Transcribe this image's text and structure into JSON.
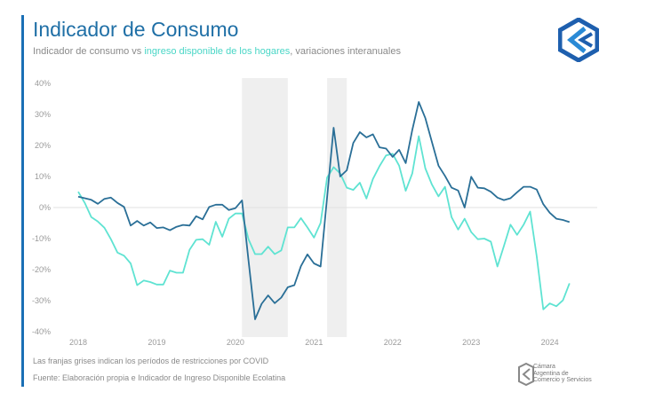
{
  "header": {
    "title": "Indicador de Consumo",
    "subtitle_part1": "Indicador de consumo vs ",
    "subtitle_highlight": "ingreso disponible de los hogares",
    "subtitle_part2": ", variaciones interanuales"
  },
  "logo": {
    "icon": "cac-logo-icon",
    "text": "Cámara Argentina de Comercio y Servicios",
    "lines": [
      "Cámara",
      "Argentina de",
      "Comercio y Servicios"
    ]
  },
  "footer": {
    "note": "Las franjas grises indican los períodos de restricciones por COVID",
    "source": "Fuente: Elaboración propia e Indicador de Ingreso Disponible Ecolatina"
  },
  "colors": {
    "accent": "#1a6fb5",
    "consumo": "#2a6f97",
    "ingreso": "#5fe3d2",
    "band": "#efefef"
  },
  "chart_data": {
    "type": "line",
    "title": "Indicador de Consumo",
    "start_month": "2018-01",
    "frequency": "monthly",
    "x_ticks": [
      "2018",
      "2019",
      "2020",
      "2021",
      "2022",
      "2023",
      "2024"
    ],
    "y_ticks": [
      "40%",
      "30%",
      "20%",
      "10%",
      "0%",
      "-10%",
      "-20%",
      "-30%",
      "-40%"
    ],
    "ylim": [
      -40,
      40
    ],
    "grid": false,
    "zero_line": true,
    "shaded_periods": [
      [
        "2020-02",
        "2020-09"
      ],
      [
        "2021-03",
        "2021-06"
      ]
    ],
    "series": [
      {
        "name": "Indicador de consumo",
        "values": [
          3.5,
          3,
          2.5,
          1.2,
          2.8,
          3.2,
          1.5,
          0.2,
          -5.8,
          -4.3,
          -5.8,
          -4.8,
          -6.6,
          -6.4,
          -7.3,
          -6.2,
          -5.6,
          -5.8,
          -2.8,
          -3.8,
          0.2,
          0.9,
          0.9,
          -0.8,
          -0.2,
          2.3,
          -17,
          -36,
          -31,
          -28.3,
          -30.8,
          -29,
          -25.7,
          -25,
          -18.9,
          -15.1,
          -18,
          -19,
          3.4,
          25.7,
          10,
          12,
          20.8,
          24.3,
          22.6,
          23.6,
          19.4,
          19,
          16.3,
          18.6,
          14.3,
          25,
          34,
          28.8,
          21.1,
          13.5,
          10.2,
          6.4,
          5.5,
          0,
          9.9,
          6.4,
          6.2,
          5.1,
          3.2,
          2.4,
          3,
          4.9,
          6.7,
          6.7,
          5.8,
          1.1,
          -1.7,
          -3.6,
          -4,
          -4.7
        ]
      },
      {
        "name": "ingreso disponible de los hogares",
        "values": [
          5.1,
          1.5,
          -3.1,
          -4.5,
          -6.5,
          -10.2,
          -14.5,
          -15.5,
          -18,
          -25,
          -23.5,
          -24,
          -24.8,
          -24.8,
          -20.3,
          -21,
          -21,
          -13.6,
          -10.4,
          -10.2,
          -12,
          -4.6,
          -9.4,
          -3.6,
          -1.9,
          -1.9,
          -10.2,
          -15,
          -15,
          -12.6,
          -15,
          -13.8,
          -6.4,
          -6.4,
          -3.4,
          -6.4,
          -9.7,
          -5,
          9.7,
          13,
          11,
          6.4,
          5.7,
          8,
          2.9,
          9.2,
          13.3,
          16.8,
          17.3,
          13.5,
          5.4,
          11,
          23,
          12.6,
          7.4,
          3.6,
          6.7,
          -3.1,
          -7.1,
          -3.6,
          -7.9,
          -10.2,
          -10,
          -11,
          -19,
          -12.4,
          -5.5,
          -8.8,
          -5.5,
          -1.3,
          -15.7,
          -32.8,
          -30.9,
          -31.8,
          -29.9,
          -24.4
        ]
      }
    ]
  }
}
